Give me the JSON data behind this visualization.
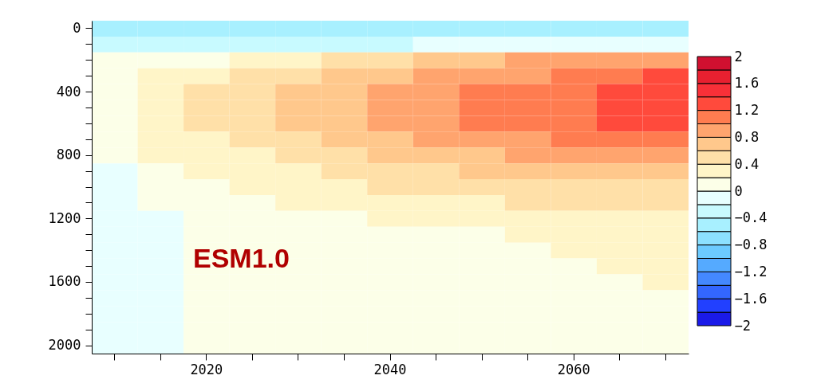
{
  "chart_data": {
    "type": "heatmap",
    "categories": [
      null,
      null,
      "2020",
      null,
      null,
      null,
      "2040",
      null,
      null,
      null,
      "2060",
      null,
      null
    ],
    "y_categories": [
      "0",
      null,
      null,
      null,
      "400",
      null,
      null,
      null,
      "800",
      null,
      null,
      null,
      "1200",
      null,
      null,
      null,
      "1600",
      null,
      null,
      null,
      "2000"
    ],
    "cells": [
      [
        -0.5,
        -0.5,
        -0.5,
        -0.5,
        -0.5,
        -0.5,
        -0.5,
        -0.5,
        -0.5,
        -0.5,
        -0.5,
        -0.5,
        -0.5
      ],
      [
        -0.3,
        -0.3,
        -0.3,
        -0.3,
        -0.3,
        -0.3,
        -0.3,
        -0.1,
        -0.1,
        -0.1,
        -0.1,
        -0.1,
        -0.1
      ],
      [
        0.1,
        0.1,
        0.1,
        0.3,
        0.3,
        0.5,
        0.5,
        0.7,
        0.7,
        0.9,
        0.9,
        0.9,
        0.9
      ],
      [
        0.1,
        0.3,
        0.3,
        0.5,
        0.5,
        0.7,
        0.7,
        0.9,
        0.9,
        0.9,
        1.1,
        1.1,
        1.3
      ],
      [
        0.1,
        0.3,
        0.5,
        0.5,
        0.7,
        0.7,
        0.9,
        0.9,
        1.1,
        1.1,
        1.1,
        1.3,
        1.3
      ],
      [
        0.1,
        0.3,
        0.5,
        0.5,
        0.7,
        0.7,
        0.9,
        0.9,
        1.1,
        1.1,
        1.1,
        1.3,
        1.3
      ],
      [
        0.1,
        0.3,
        0.5,
        0.5,
        0.7,
        0.7,
        0.9,
        0.9,
        1.1,
        1.1,
        1.1,
        1.3,
        1.3
      ],
      [
        0.1,
        0.3,
        0.3,
        0.5,
        0.5,
        0.7,
        0.7,
        0.9,
        0.9,
        0.9,
        1.1,
        1.1,
        1.1
      ],
      [
        0.1,
        0.3,
        0.3,
        0.3,
        0.5,
        0.5,
        0.7,
        0.7,
        0.7,
        0.9,
        0.9,
        0.9,
        0.9
      ],
      [
        -0.1,
        0.1,
        0.3,
        0.3,
        0.3,
        0.5,
        0.5,
        0.5,
        0.7,
        0.7,
        0.7,
        0.7,
        0.7
      ],
      [
        -0.1,
        0.1,
        0.1,
        0.3,
        0.3,
        0.3,
        0.5,
        0.5,
        0.5,
        0.5,
        0.5,
        0.5,
        0.5
      ],
      [
        -0.1,
        0.1,
        0.1,
        0.1,
        0.3,
        0.3,
        0.3,
        0.3,
        0.3,
        0.5,
        0.5,
        0.5,
        0.5
      ],
      [
        -0.1,
        -0.1,
        0.1,
        0.1,
        0.1,
        0.1,
        0.3,
        0.3,
        0.3,
        0.3,
        0.3,
        0.3,
        0.3
      ],
      [
        -0.1,
        -0.1,
        0.1,
        0.1,
        0.1,
        0.1,
        0.1,
        0.1,
        0.1,
        0.3,
        0.3,
        0.3,
        0.3
      ],
      [
        -0.1,
        -0.1,
        0.1,
        0.1,
        0.1,
        0.1,
        0.1,
        0.1,
        0.1,
        0.1,
        0.3,
        0.3,
        0.3
      ],
      [
        -0.1,
        -0.1,
        0.1,
        0.1,
        0.1,
        0.1,
        0.1,
        0.1,
        0.1,
        0.1,
        0.1,
        0.3,
        0.3
      ],
      [
        -0.1,
        -0.1,
        0.1,
        0.1,
        0.1,
        0.1,
        0.1,
        0.1,
        0.1,
        0.1,
        0.1,
        0.1,
        0.3
      ],
      [
        -0.1,
        -0.1,
        0.1,
        0.1,
        0.1,
        0.1,
        0.1,
        0.1,
        0.1,
        0.1,
        0.1,
        0.1,
        0.1
      ],
      [
        -0.1,
        -0.1,
        0.1,
        0.1,
        0.1,
        0.1,
        0.1,
        0.1,
        0.1,
        0.1,
        0.1,
        0.1,
        0.1
      ],
      [
        -0.1,
        -0.1,
        0.1,
        0.1,
        0.1,
        0.1,
        0.1,
        0.1,
        0.1,
        0.1,
        0.1,
        0.1,
        0.1
      ],
      [
        -0.1,
        -0.1,
        0.1,
        0.1,
        0.1,
        0.1,
        0.1,
        0.1,
        0.1,
        0.1,
        0.1,
        0.1,
        0.1
      ]
    ],
    "clim": [
      -2,
      2
    ],
    "cticks": [
      {
        "value": -2,
        "label": "−2"
      },
      {
        "value": -1.6,
        "label": "−1.6"
      },
      {
        "value": -1.2,
        "label": "−1.2"
      },
      {
        "value": -0.8,
        "label": "−0.8"
      },
      {
        "value": -0.4,
        "label": "−0.4"
      },
      0,
      0.4,
      0.8,
      1.2,
      1.6,
      2
    ],
    "colors": [
      "#1a1ae8",
      "#2240ff",
      "#3366ff",
      "#4488ff",
      "#55aaff",
      "#6ccaff",
      "#8ce0ff",
      "#a8f0ff",
      "#c8faff",
      "#e8ffff",
      "#fcffe8",
      "#fff5c8",
      "#ffe0a8",
      "#ffc88c",
      "#ffa46e",
      "#ff7c50",
      "#ff4a3c",
      "#f83038",
      "#e82030",
      "#d01030"
    ],
    "annotations": [
      "ESM1.0"
    ]
  }
}
